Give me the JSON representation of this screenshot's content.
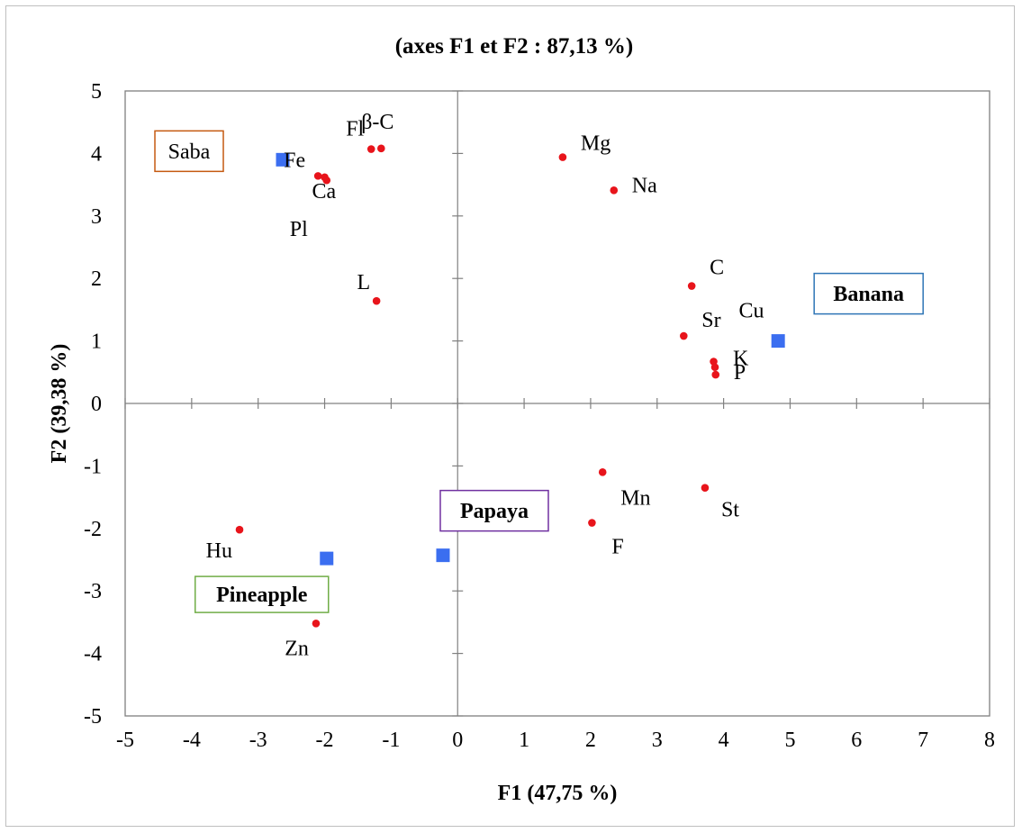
{
  "chart_data": {
    "type": "scatter",
    "title": "(axes F1 et F2 : 87,13 %)",
    "xlabel": "F1 (47,75 %)",
    "ylabel": "F2 (39,38 %)",
    "xlim": [
      -5,
      8
    ],
    "ylim": [
      -5,
      5
    ],
    "xticks": [
      "-5",
      "-4",
      "-3",
      "-2",
      "-1",
      "0",
      "1",
      "2",
      "3",
      "4",
      "5",
      "6",
      "7",
      "8"
    ],
    "yticks": [
      "-5",
      "-4",
      "-3",
      "-2",
      "-1",
      "0",
      "1",
      "2",
      "3",
      "4",
      "5"
    ],
    "grid": false,
    "marker_colors": {
      "variables": "#e8141b",
      "groups": "#3b6ef0"
    },
    "variables": [
      {
        "label": "Fe",
        "x": -2.1,
        "y": 3.64
      },
      {
        "label": "Fl",
        "x": -1.3,
        "y": 4.07
      },
      {
        "label": "β-C",
        "x": -1.15,
        "y": 4.08
      },
      {
        "label": "Ca",
        "x": -2.0,
        "y": 3.62
      },
      {
        "label": "Pl",
        "x": -1.97,
        "y": 3.57
      },
      {
        "label": "L",
        "x": -1.22,
        "y": 1.64
      },
      {
        "label": "Mg",
        "x": 1.58,
        "y": 3.94
      },
      {
        "label": "Na",
        "x": 2.35,
        "y": 3.41
      },
      {
        "label": "C",
        "x": 3.52,
        "y": 1.88
      },
      {
        "label": "Sr",
        "x": 3.4,
        "y": 1.08
      },
      {
        "label": "Cu",
        "x": 3.85,
        "y": 0.67
      },
      {
        "label": "K",
        "x": 3.87,
        "y": 0.58
      },
      {
        "label": "P",
        "x": 3.88,
        "y": 0.46
      },
      {
        "label": "Mn",
        "x": 2.18,
        "y": -1.1
      },
      {
        "label": "St",
        "x": 3.72,
        "y": -1.35
      },
      {
        "label": "F",
        "x": 2.02,
        "y": -1.91
      },
      {
        "label": "Hu",
        "x": -3.28,
        "y": -2.02
      },
      {
        "label": "Zn",
        "x": -2.13,
        "y": -3.52
      }
    ],
    "groups": [
      {
        "label": "Saba",
        "x": -2.63,
        "y": 3.9,
        "bold": false,
        "box_color": "#c55a11"
      },
      {
        "label": "Banana",
        "x": 4.82,
        "y": 1.0,
        "bold": true,
        "box_color": "#2e75b6"
      },
      {
        "label": "Papaya",
        "x": -0.22,
        "y": -2.43,
        "bold": true,
        "box_color": "#7030a0"
      },
      {
        "label": "Pineapple",
        "x": -1.97,
        "y": -2.48,
        "bold": true,
        "box_color": "#70ad47"
      }
    ]
  }
}
